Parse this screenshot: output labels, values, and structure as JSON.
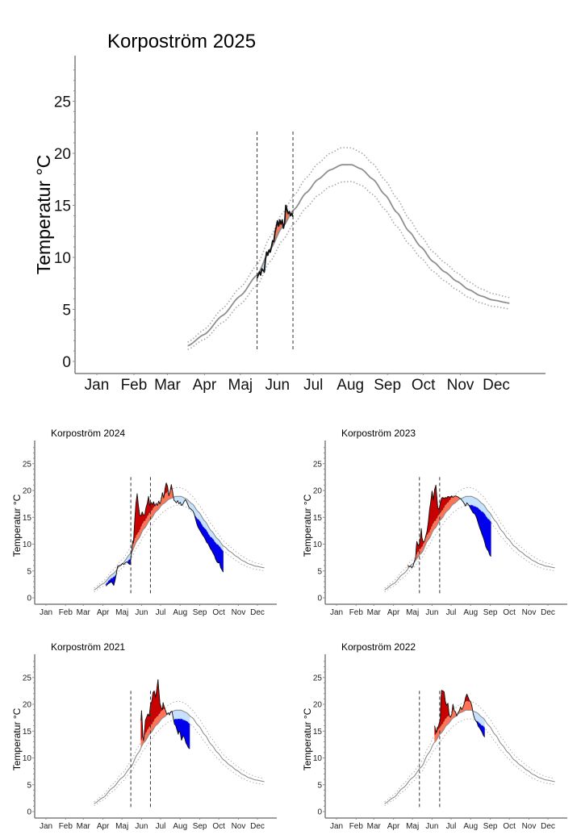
{
  "colors": {
    "above_mean": "#FF7256",
    "above_upper": "#C80000",
    "below_mean": "#C6E2FF",
    "below_lower": "#0000EE",
    "climatology": "#8F8F8F",
    "observed": "#111111"
  },
  "chart_data": [
    {
      "id": "p2025",
      "type": "area",
      "title": "Korpoström 2025",
      "xlabel": "",
      "ylabel": "Temperatur °C",
      "ylim": [
        -1.2,
        29.5
      ],
      "yticks": [
        0,
        5,
        10,
        15,
        20,
        25
      ],
      "xlim_day": [
        1,
        378
      ],
      "xtick_labels": [
        "Jan",
        "Feb",
        "Mar",
        "Apr",
        "Maj",
        "Jun",
        "Jul",
        "Aug",
        "Sep",
        "Oct",
        "Nov",
        "Dec"
      ],
      "xtick_days": [
        15,
        46,
        74,
        105,
        135,
        166,
        196,
        227,
        258,
        288,
        319,
        349
      ],
      "vlines_day": [
        149,
        179
      ],
      "observed": [
        [
          149,
          8.0
        ],
        [
          151,
          8.6
        ],
        [
          152,
          8.3
        ],
        [
          153,
          8.9
        ],
        [
          155,
          8.6
        ],
        [
          156,
          9.8
        ],
        [
          157,
          10.5
        ],
        [
          158,
          10.2
        ],
        [
          159,
          10.7
        ],
        [
          160,
          10.5
        ],
        [
          161,
          11.0
        ],
        [
          162,
          11.6
        ],
        [
          163,
          11.5
        ],
        [
          164,
          12.4
        ],
        [
          165,
          12.9
        ],
        [
          166,
          13.5
        ],
        [
          167,
          13.0
        ],
        [
          168,
          13.6
        ],
        [
          169,
          13.2
        ],
        [
          170,
          13.6
        ],
        [
          171,
          12.8
        ],
        [
          172,
          13.3
        ],
        [
          173,
          15.0
        ],
        [
          174,
          14.6
        ],
        [
          175,
          14.2
        ],
        [
          176,
          14.4
        ],
        [
          177,
          14.0
        ],
        [
          178,
          14.2
        ],
        [
          179,
          13.9
        ]
      ]
    },
    {
      "id": "p2024",
      "type": "area",
      "title": "Korpoström 2024",
      "xlabel": "",
      "ylabel": "Temperatur °C",
      "ylim": [
        -1.2,
        29.5
      ],
      "yticks": [
        0,
        5,
        10,
        15,
        20,
        25
      ],
      "xlim_day": [
        1,
        378
      ],
      "xtick_labels": [
        "Jan",
        "Feb",
        "Mar",
        "Apr",
        "Maj",
        "Jun",
        "Jul",
        "Aug",
        "Sep",
        "Oct",
        "Nov",
        "Dec"
      ],
      "xtick_days": [
        15,
        46,
        74,
        105,
        135,
        166,
        196,
        227,
        258,
        288,
        319,
        349
      ],
      "vlines_day": [
        149,
        180
      ],
      "observed": [
        [
          110,
          2.2
        ],
        [
          113,
          2.6
        ],
        [
          116,
          2.8
        ],
        [
          118,
          3.0
        ],
        [
          120,
          2.7
        ],
        [
          122,
          2.3
        ],
        [
          124,
          3.2
        ],
        [
          126,
          4.4
        ],
        [
          128,
          5.8
        ],
        [
          130,
          6.0
        ],
        [
          133,
          6.0
        ],
        [
          136,
          6.4
        ],
        [
          138,
          6.2
        ],
        [
          140,
          6.5
        ],
        [
          143,
          6.7
        ],
        [
          146,
          6.3
        ],
        [
          148,
          6.2
        ],
        [
          150,
          8.2
        ],
        [
          152,
          10.6
        ],
        [
          153,
          10.2
        ],
        [
          155,
          14.0
        ],
        [
          157,
          17.5
        ],
        [
          159,
          19.4
        ],
        [
          161,
          17.2
        ],
        [
          163,
          15.5
        ],
        [
          165,
          15.2
        ],
        [
          167,
          16.0
        ],
        [
          169,
          15.4
        ],
        [
          171,
          15.5
        ],
        [
          173,
          16.8
        ],
        [
          175,
          17.6
        ],
        [
          177,
          18.9
        ],
        [
          179,
          17.2
        ],
        [
          181,
          17.8
        ],
        [
          183,
          17.4
        ],
        [
          185,
          17.9
        ],
        [
          187,
          17.1
        ],
        [
          189,
          17.6
        ],
        [
          191,
          17.2
        ],
        [
          193,
          18.0
        ],
        [
          195,
          17.5
        ],
        [
          197,
          18.3
        ],
        [
          199,
          19.6
        ],
        [
          201,
          18.6
        ],
        [
          203,
          20.3
        ],
        [
          205,
          21.4
        ],
        [
          207,
          20.8
        ],
        [
          209,
          19.0
        ],
        [
          211,
          19.8
        ],
        [
          213,
          21.1
        ],
        [
          215,
          19.8
        ],
        [
          217,
          18.2
        ],
        [
          219,
          18.0
        ],
        [
          221,
          17.7
        ],
        [
          223,
          18.1
        ],
        [
          225,
          17.5
        ],
        [
          227,
          17.8
        ],
        [
          229,
          17.2
        ],
        [
          231,
          17.4
        ],
        [
          233,
          17.9
        ],
        [
          235,
          18.3
        ],
        [
          237,
          18.0
        ],
        [
          239,
          17.4
        ],
        [
          241,
          16.8
        ],
        [
          243,
          16.6
        ],
        [
          245,
          16.4
        ],
        [
          247,
          16.2
        ],
        [
          249,
          15.7
        ],
        [
          251,
          14.8
        ],
        [
          253,
          13.9
        ],
        [
          255,
          13.2
        ],
        [
          257,
          12.8
        ],
        [
          259,
          12.4
        ],
        [
          261,
          12.0
        ],
        [
          263,
          11.6
        ],
        [
          265,
          11.3
        ],
        [
          267,
          10.8
        ],
        [
          269,
          10.3
        ],
        [
          271,
          10.1
        ],
        [
          273,
          9.6
        ],
        [
          275,
          9.1
        ],
        [
          277,
          8.8
        ],
        [
          279,
          8.3
        ],
        [
          281,
          7.9
        ],
        [
          283,
          7.2
        ],
        [
          285,
          6.7
        ],
        [
          287,
          6.5
        ],
        [
          289,
          6.6
        ],
        [
          291,
          5.6
        ],
        [
          293,
          5.2
        ],
        [
          295,
          4.8
        ]
      ]
    },
    {
      "id": "p2023",
      "type": "area",
      "title": "Korpoström 2023",
      "xlabel": "",
      "ylabel": "Temperatur °C",
      "ylim": [
        -1.2,
        29.5
      ],
      "yticks": [
        0,
        5,
        10,
        15,
        20,
        25
      ],
      "xlim_day": [
        1,
        378
      ],
      "xtick_labels": [
        "Jan",
        "Feb",
        "Mar",
        "Apr",
        "Maj",
        "Jun",
        "Jul",
        "Aug",
        "Sep",
        "Oct",
        "Nov",
        "Dec"
      ],
      "xtick_days": [
        15,
        46,
        74,
        105,
        135,
        166,
        196,
        227,
        258,
        288,
        319,
        349
      ],
      "vlines_day": [
        146,
        178
      ],
      "observed": [
        [
          128,
          6.0
        ],
        [
          130,
          5.8
        ],
        [
          132,
          5.9
        ],
        [
          134,
          5.6
        ],
        [
          136,
          5.9
        ],
        [
          138,
          6.8
        ],
        [
          140,
          7.5
        ],
        [
          141,
          9.4
        ],
        [
          142,
          10.5
        ],
        [
          144,
          9.7
        ],
        [
          146,
          10.1
        ],
        [
          148,
          11.6
        ],
        [
          149,
          12.9
        ],
        [
          150,
          11.2
        ],
        [
          152,
          10.4
        ],
        [
          154,
          10.5
        ],
        [
          156,
          11.5
        ],
        [
          158,
          12.4
        ],
        [
          160,
          14.0
        ],
        [
          162,
          16.4
        ],
        [
          164,
          18.0
        ],
        [
          166,
          19.9
        ],
        [
          167,
          19.2
        ],
        [
          168,
          18.2
        ],
        [
          170,
          20.2
        ],
        [
          172,
          21.0
        ],
        [
          173,
          19.5
        ],
        [
          175,
          16.8
        ],
        [
          177,
          16.5
        ],
        [
          179,
          17.6
        ],
        [
          181,
          18.6
        ],
        [
          183,
          18.7
        ],
        [
          185,
          18.5
        ],
        [
          187,
          18.7
        ],
        [
          189,
          18.6
        ],
        [
          191,
          18.9
        ],
        [
          193,
          18.8
        ],
        [
          195,
          18.8
        ],
        [
          197,
          19.0
        ],
        [
          199,
          18.7
        ],
        [
          201,
          18.9
        ],
        [
          203,
          19.0
        ],
        [
          205,
          18.9
        ],
        [
          207,
          18.8
        ],
        [
          209,
          18.6
        ],
        [
          211,
          18.5
        ],
        [
          213,
          18.2
        ],
        [
          215,
          17.9
        ],
        [
          217,
          17.5
        ],
        [
          219,
          17.1
        ],
        [
          221,
          17.7
        ],
        [
          223,
          17.4
        ],
        [
          225,
          17.1
        ],
        [
          227,
          16.6
        ],
        [
          229,
          16.2
        ],
        [
          231,
          15.8
        ],
        [
          233,
          15.7
        ],
        [
          235,
          15.3
        ],
        [
          237,
          14.7
        ],
        [
          239,
          13.9
        ],
        [
          241,
          13.1
        ],
        [
          243,
          12.5
        ],
        [
          245,
          11.8
        ],
        [
          247,
          11.2
        ],
        [
          249,
          10.4
        ],
        [
          251,
          9.5
        ],
        [
          253,
          9.0
        ],
        [
          255,
          8.7
        ],
        [
          257,
          8.0
        ],
        [
          259,
          7.7
        ]
      ]
    },
    {
      "id": "p2021",
      "type": "area",
      "title": "Korpoström 2021",
      "xlabel": "",
      "ylabel": "Temperatur °C",
      "ylim": [
        -1.2,
        29.5
      ],
      "yticks": [
        0,
        5,
        10,
        15,
        20,
        25
      ],
      "xlim_day": [
        1,
        378
      ],
      "xtick_labels": [
        "Jan",
        "Feb",
        "Mar",
        "Apr",
        "Maj",
        "Jun",
        "Jul",
        "Aug",
        "Sep",
        "Oct",
        "Nov",
        "Dec"
      ],
      "xtick_days": [
        15,
        46,
        74,
        105,
        135,
        166,
        196,
        227,
        258,
        288,
        319,
        349
      ],
      "vlines_day": [
        149,
        180
      ],
      "observed": [
        [
          165,
          17.0
        ],
        [
          166,
          18.8
        ],
        [
          167,
          16.8
        ],
        [
          168,
          14.0
        ],
        [
          169,
          13.2
        ],
        [
          170,
          14.2
        ],
        [
          171,
          15.5
        ],
        [
          172,
          17.0
        ],
        [
          174,
          17.6
        ],
        [
          176,
          18.2
        ],
        [
          178,
          17.8
        ],
        [
          180,
          19.8
        ],
        [
          182,
          20.5
        ],
        [
          184,
          22.2
        ],
        [
          186,
          22.5
        ],
        [
          188,
          21.3
        ],
        [
          190,
          22.8
        ],
        [
          192,
          24.6
        ],
        [
          193,
          23.0
        ],
        [
          195,
          20.2
        ],
        [
          197,
          19.4
        ],
        [
          199,
          19.0
        ],
        [
          200,
          20.3
        ],
        [
          202,
          19.4
        ],
        [
          204,
          18.8
        ],
        [
          206,
          18.1
        ],
        [
          208,
          18.4
        ],
        [
          210,
          18.0
        ],
        [
          212,
          18.6
        ],
        [
          214,
          18.7
        ],
        [
          216,
          17.4
        ],
        [
          218,
          16.3
        ],
        [
          220,
          16.0
        ],
        [
          222,
          15.2
        ],
        [
          224,
          14.4
        ],
        [
          225,
          15.0
        ],
        [
          227,
          14.7
        ],
        [
          229,
          13.3
        ],
        [
          230,
          13.6
        ],
        [
          232,
          14.2
        ],
        [
          234,
          13.7
        ],
        [
          236,
          12.8
        ],
        [
          238,
          12.4
        ],
        [
          240,
          11.9
        ],
        [
          242,
          11.7
        ]
      ]
    },
    {
      "id": "p2022",
      "type": "area",
      "title": "Korpoström 2022",
      "xlabel": "",
      "ylabel": "Temperatur °C",
      "ylim": [
        -1.2,
        29.5
      ],
      "yticks": [
        0,
        5,
        10,
        15,
        20,
        25
      ],
      "xlim_day": [
        1,
        378
      ],
      "xtick_labels": [
        "Jan",
        "Feb",
        "Mar",
        "Apr",
        "Maj",
        "Jun",
        "Jul",
        "Aug",
        "Sep",
        "Oct",
        "Nov",
        "Dec"
      ],
      "xtick_days": [
        15,
        46,
        74,
        105,
        135,
        166,
        196,
        227,
        258,
        288,
        319,
        349
      ],
      "vlines_day": [
        146,
        178
      ],
      "observed": [
        [
          170,
          16.0
        ],
        [
          172,
          15.0
        ],
        [
          173,
          14.7
        ],
        [
          174,
          15.6
        ],
        [
          176,
          15.9
        ],
        [
          178,
          16.8
        ],
        [
          179,
          17.0
        ],
        [
          180,
          20.8
        ],
        [
          181,
          22.6
        ],
        [
          183,
          22.5
        ],
        [
          185,
          22.3
        ],
        [
          187,
          20.5
        ],
        [
          189,
          19.8
        ],
        [
          191,
          20.2
        ],
        [
          193,
          18.0
        ],
        [
          195,
          17.6
        ],
        [
          197,
          18.1
        ],
        [
          199,
          20.0
        ],
        [
          201,
          18.8
        ],
        [
          203,
          18.6
        ],
        [
          205,
          17.8
        ],
        [
          207,
          18.4
        ],
        [
          209,
          18.8
        ],
        [
          211,
          19.5
        ],
        [
          213,
          19.0
        ],
        [
          215,
          19.5
        ],
        [
          217,
          20.2
        ],
        [
          219,
          21.3
        ],
        [
          221,
          21.9
        ],
        [
          223,
          21.3
        ],
        [
          225,
          20.7
        ],
        [
          227,
          20.5
        ],
        [
          229,
          19.6
        ],
        [
          231,
          18.2
        ],
        [
          233,
          17.4
        ],
        [
          235,
          16.9
        ],
        [
          237,
          16.6
        ],
        [
          239,
          15.9
        ],
        [
          241,
          15.6
        ],
        [
          243,
          15.2
        ],
        [
          245,
          14.8
        ],
        [
          247,
          14.2
        ],
        [
          249,
          13.9
        ]
      ]
    }
  ],
  "climatology": {
    "start_day": 91,
    "end_day": 360,
    "mean": [
      [
        91,
        1.5
      ],
      [
        105,
        2.6
      ],
      [
        120,
        4.4
      ],
      [
        135,
        6.3
      ],
      [
        149,
        8.3
      ],
      [
        160,
        10.8
      ],
      [
        170,
        12.9
      ],
      [
        180,
        14.6
      ],
      [
        190,
        16.2
      ],
      [
        200,
        17.5
      ],
      [
        210,
        18.4
      ],
      [
        220,
        18.9
      ],
      [
        228,
        18.9
      ],
      [
        236,
        18.5
      ],
      [
        246,
        17.5
      ],
      [
        256,
        16.0
      ],
      [
        266,
        14.3
      ],
      [
        276,
        12.5
      ],
      [
        286,
        11.0
      ],
      [
        296,
        9.6
      ],
      [
        306,
        8.6
      ],
      [
        316,
        7.7
      ],
      [
        326,
        6.9
      ],
      [
        336,
        6.3
      ],
      [
        346,
        5.9
      ],
      [
        360,
        5.6
      ]
    ],
    "band_halfwidth": [
      [
        91,
        0.35
      ],
      [
        135,
        0.8
      ],
      [
        170,
        1.3
      ],
      [
        220,
        1.65
      ],
      [
        260,
        1.4
      ],
      [
        300,
        0.9
      ],
      [
        360,
        0.55
      ]
    ]
  }
}
